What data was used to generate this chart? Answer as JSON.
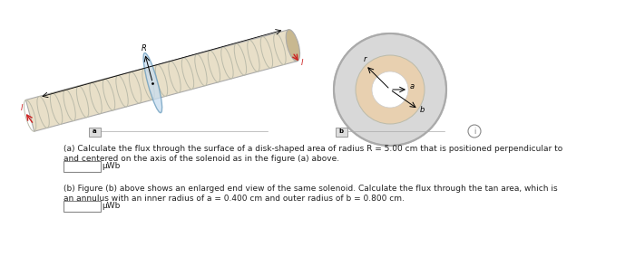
{
  "bg_color": "#ffffff",
  "text_color": "#222222",
  "fig_width": 7.0,
  "fig_height": 2.94,
  "dpi": 100,
  "part_a_text_line1": "(a) Calculate the flux through the surface of a disk-shaped area of radius R = 5.00 cm that is positioned perpendicular to",
  "part_a_text_line2": "and centered on the axis of the solenoid as in the figure (a) above.",
  "part_a_unit": "μWb",
  "part_b_text_line1": "(b) Figure (b) above shows an enlarged end view of the same solenoid. Calculate the flux through the tan area, which is",
  "part_b_text_line2": "an annulus with an inner radius of a = 0.400 cm and outer radius of b = 0.800 cm.",
  "part_b_unit": "μWb",
  "solenoid_color": "#e8dfc8",
  "solenoid_edge_color": "#aaaaaa",
  "coil_color": "#bbbbaa",
  "disk_color": "#c8ddf0",
  "disk_edge_color": "#6699bb",
  "annulus_tan_color": "#e8d0b0",
  "annulus_gray_color": "#d8d8d8",
  "annulus_gray_edge": "#bbbbbb",
  "annulus_white_color": "#ffffff",
  "endcap_color": "#c8b890"
}
